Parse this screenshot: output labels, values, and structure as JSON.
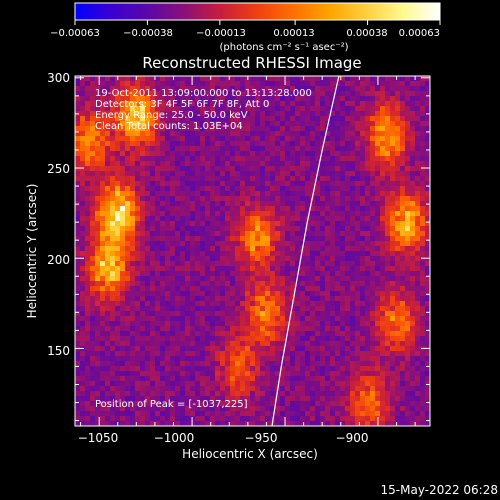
{
  "chart_data": {
    "type": "heatmap",
    "title": "Reconstructed RHESSI Image",
    "xlabel": "Heliocentric X (arcsec)",
    "ylabel": "Heliocentric Y (arcsec)",
    "xlim": [
      -1063,
      -872
    ],
    "ylim": [
      107,
      301
    ],
    "x_ticks": [
      -1050,
      -1000,
      -950,
      -900
    ],
    "x_tick_labels": [
      "−1050",
      "−1000",
      "−950",
      "−900"
    ],
    "y_ticks": [
      150,
      200,
      250,
      300
    ],
    "y_tick_labels": [
      "150",
      "200",
      "250",
      "300"
    ],
    "colorbar": {
      "range": [
        -0.00063,
        0.00063
      ],
      "ticks": [
        -0.00063,
        -0.00038,
        -0.00013,
        0.00013,
        0.00038,
        0.00063
      ],
      "tick_labels": [
        "−0.00063",
        "−0.00038",
        "−0.00013",
        "0.00013",
        "0.00038",
        "0.00063"
      ],
      "unit_label": "(photons cm⁻² s⁻¹ asec⁻²)",
      "colormap": [
        "#0000ff",
        "#3a00d0",
        "#5a08a8",
        "#8c1078",
        "#c81e3c",
        "#f04010",
        "#ff7000",
        "#ffa500",
        "#ffd040",
        "#fffa90",
        "#ffffff"
      ]
    },
    "annotations": [
      "19-Oct-2011 13:09:00.000 to 13:13:28.000",
      "Detectors: 3F 4F 5F 6F 7F 8F, Att 0",
      "Energy Range: 25.0 - 50.0 keV",
      "Clean     Total counts: 1.03E+04"
    ],
    "peak_label": "Position of Peak = [-1037,225]",
    "peak": [
      -1037,
      225
    ],
    "limb_curve": [
      [
        -957,
        107
      ],
      [
        -952,
        140
      ],
      [
        -945,
        180
      ],
      [
        -938,
        220
      ],
      [
        -930,
        260
      ],
      [
        -921,
        301
      ]
    ],
    "bright_sources": [
      {
        "x": -1040,
        "y": 225,
        "level": 1.0
      },
      {
        "x": -1045,
        "y": 195,
        "level": 0.8
      },
      {
        "x": -1030,
        "y": 278,
        "level": 0.85
      },
      {
        "x": -1055,
        "y": 265,
        "level": 0.6
      },
      {
        "x": -965,
        "y": 212,
        "level": 0.65
      },
      {
        "x": -960,
        "y": 170,
        "level": 0.6
      },
      {
        "x": -975,
        "y": 140,
        "level": 0.45
      },
      {
        "x": -895,
        "y": 268,
        "level": 0.7
      },
      {
        "x": -885,
        "y": 220,
        "level": 0.75
      },
      {
        "x": -890,
        "y": 165,
        "level": 0.55
      },
      {
        "x": -905,
        "y": 120,
        "level": 0.5
      }
    ]
  },
  "footer_text": "15-May-2022 06:28"
}
